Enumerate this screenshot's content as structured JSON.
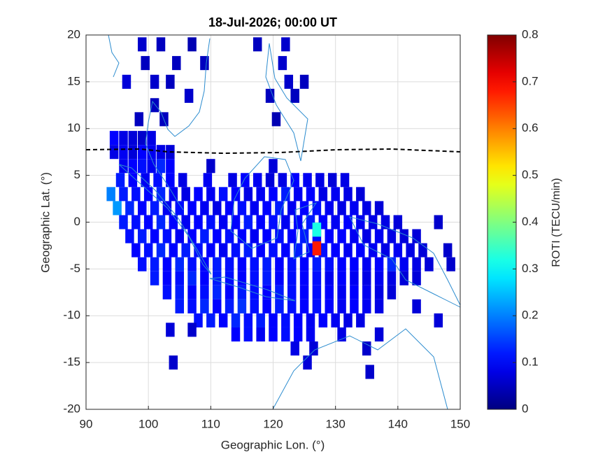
{
  "chart_data": {
    "type": "heatmap",
    "title": "18-Jul-2026; 00:00 UT",
    "xlabel": "Geographic Lon. (°)",
    "ylabel": "Geographic Lat. (°)",
    "colorbar_label": "ROTI (TECU/min)",
    "colormap": "jet",
    "xlim": [
      90,
      150
    ],
    "xticks": [
      90,
      100,
      110,
      120,
      130,
      140,
      150
    ],
    "ylim": [
      -20,
      20
    ],
    "yticks": [
      -20,
      -15,
      -10,
      -5,
      0,
      5,
      10,
      15,
      20
    ],
    "clim": [
      0,
      0.8
    ],
    "cticks": [
      0,
      0.1,
      0.2,
      0.3,
      0.4,
      0.5,
      0.6,
      0.7,
      0.8
    ],
    "grid": true,
    "rows": [
      {
        "lat": 19,
        "lon": [
          99,
          102,
          107,
          117.5,
          122
        ],
        "values": [
          0.06,
          0.05,
          0.04,
          0.05,
          0.06
        ]
      },
      {
        "lat": 17,
        "lon": [
          99.5,
          104.5,
          109,
          121.5
        ],
        "values": [
          0.05,
          0.05,
          0.05,
          0.06
        ]
      },
      {
        "lat": 15,
        "lon": [
          96.5,
          101,
          103.5,
          122.5,
          125
        ],
        "values": [
          0.07,
          0.06,
          0.05,
          0.06,
          0.05
        ]
      },
      {
        "lat": 13.5,
        "lon": [
          106.5,
          119.5,
          123.5
        ],
        "values": [
          0.06,
          0.05,
          0.05
        ]
      },
      {
        "lat": 12.5,
        "lon": [
          101
        ],
        "values": [
          0.05
        ]
      },
      {
        "lat": 11,
        "lon": [
          98.5,
          102.5,
          120.5
        ],
        "values": [
          0.05,
          0.05,
          0.04
        ]
      },
      {
        "lat": 9,
        "lon": [
          94.5,
          96,
          97.5,
          99,
          100.5
        ],
        "values": [
          0.1,
          0.08,
          0.07,
          0.06,
          0.08
        ]
      },
      {
        "lat": 7.5,
        "lon": [
          94.5,
          96,
          97.5,
          99,
          100.5,
          102,
          103.5
        ],
        "values": [
          0.08,
          0.09,
          0.07,
          0.1,
          0.09,
          0.08,
          0.07
        ]
      },
      {
        "lat": 6,
        "lon": [
          96,
          97.5,
          99,
          100.5,
          102,
          103.5,
          110,
          120
        ],
        "values": [
          0.09,
          0.1,
          0.11,
          0.09,
          0.13,
          0.1,
          0.06,
          0.07
        ]
      },
      {
        "lat": 4.5,
        "lon": [
          95.5,
          97.5,
          99.5,
          101.5,
          103.5,
          105.5,
          109.5,
          113.5,
          115.5,
          117.5,
          119.5,
          121.5,
          123.5,
          125.5,
          127.5,
          129.5,
          131.5
        ],
        "values": [
          0.12,
          0.1,
          0.09,
          0.11,
          0.1,
          0.08,
          0.09,
          0.08,
          0.1,
          0.09,
          0.07,
          0.08,
          0.1,
          0.09,
          0.08,
          0.07,
          0.08
        ]
      },
      {
        "lat": 3,
        "lon": [
          94,
          96,
          98,
          100,
          102,
          104,
          106,
          108,
          110,
          112,
          114,
          116,
          118,
          120,
          122,
          124,
          126,
          128,
          130,
          132,
          134
        ],
        "values": [
          0.2,
          0.12,
          0.11,
          0.1,
          0.13,
          0.09,
          0.08,
          0.1,
          0.09,
          0.11,
          0.1,
          0.08,
          0.09,
          0.1,
          0.12,
          0.09,
          0.1,
          0.08,
          0.09,
          0.08,
          0.07
        ]
      },
      {
        "lat": 1.5,
        "lon": [
          95,
          97,
          99,
          101,
          103,
          105,
          107,
          109,
          111,
          113,
          115,
          117,
          119,
          121,
          123,
          125,
          127,
          129,
          131,
          133,
          135,
          137
        ],
        "values": [
          0.22,
          0.13,
          0.1,
          0.12,
          0.09,
          0.11,
          0.1,
          0.09,
          0.08,
          0.1,
          0.11,
          0.09,
          0.1,
          0.12,
          0.09,
          0.1,
          0.11,
          0.09,
          0.08,
          0.09,
          0.08,
          0.07
        ]
      },
      {
        "lat": 0,
        "lon": [
          96,
          98,
          100,
          102,
          104,
          106,
          108,
          110,
          112,
          114,
          116,
          118,
          120,
          122,
          124,
          126,
          128,
          130,
          132,
          134,
          136,
          138,
          140,
          146.5
        ],
        "values": [
          0.12,
          0.11,
          0.1,
          0.13,
          0.1,
          0.09,
          0.1,
          0.11,
          0.09,
          0.1,
          0.12,
          0.1,
          0.11,
          0.09,
          0.1,
          0.12,
          0.1,
          0.09,
          0.1,
          0.09,
          0.08,
          0.08,
          0.07,
          0.06
        ]
      },
      {
        "lat": -1.5,
        "lon": [
          97,
          99,
          101,
          103,
          105,
          107,
          109,
          111,
          113,
          115,
          117,
          119,
          121,
          123,
          125,
          127,
          129,
          131,
          133,
          135,
          137,
          139,
          141,
          143
        ],
        "values": [
          0.11,
          0.12,
          0.1,
          0.11,
          0.09,
          0.1,
          0.12,
          0.1,
          0.11,
          0.1,
          0.09,
          0.1,
          0.11,
          0.1,
          0.12,
          0.11,
          0.1,
          0.1,
          0.09,
          0.08,
          0.09,
          0.08,
          0.07,
          0.07
        ]
      },
      {
        "lat": -3,
        "lon": [
          98,
          100,
          102,
          104,
          106,
          108,
          110,
          112,
          114,
          116,
          118,
          120,
          122,
          124,
          126,
          128,
          130,
          132,
          134,
          136,
          138,
          140,
          142,
          144,
          148
        ],
        "values": [
          0.1,
          0.11,
          0.13,
          0.1,
          0.12,
          0.11,
          0.1,
          0.09,
          0.11,
          0.12,
          0.1,
          0.11,
          0.1,
          0.12,
          0.1,
          0.11,
          0.1,
          0.09,
          0.1,
          0.09,
          0.08,
          0.09,
          0.08,
          0.07,
          0.06
        ]
      },
      {
        "lat": -4.5,
        "lon": [
          99,
          101,
          103,
          105,
          107,
          109,
          111,
          113,
          115,
          117,
          119,
          121,
          123,
          125,
          127,
          129,
          131,
          133,
          135,
          137,
          139,
          141,
          143,
          145,
          148.5
        ],
        "values": [
          0.11,
          0.12,
          0.1,
          0.13,
          0.11,
          0.1,
          0.12,
          0.11,
          0.1,
          0.11,
          0.12,
          0.1,
          0.11,
          0.1,
          0.12,
          0.11,
          0.1,
          0.1,
          0.09,
          0.1,
          0.13,
          0.09,
          0.08,
          0.07,
          0.06
        ]
      },
      {
        "lat": -6,
        "lon": [
          101,
          103,
          105,
          107,
          109,
          111,
          113,
          115,
          117,
          119,
          121,
          123,
          125,
          127,
          129,
          131,
          133,
          135,
          137,
          139,
          141,
          143
        ],
        "values": [
          0.12,
          0.1,
          0.11,
          0.13,
          0.1,
          0.12,
          0.11,
          0.1,
          0.11,
          0.12,
          0.1,
          0.11,
          0.1,
          0.11,
          0.09,
          0.1,
          0.09,
          0.08,
          0.09,
          0.08,
          0.07,
          0.07
        ]
      },
      {
        "lat": -7.5,
        "lon": [
          103,
          105,
          107,
          109,
          111,
          113,
          115,
          117,
          119,
          121,
          123,
          125,
          127,
          129,
          131,
          133,
          135,
          137,
          139
        ],
        "values": [
          0.11,
          0.12,
          0.1,
          0.11,
          0.13,
          0.1,
          0.12,
          0.11,
          0.1,
          0.12,
          0.11,
          0.1,
          0.11,
          0.1,
          0.09,
          0.1,
          0.09,
          0.08,
          0.07
        ]
      },
      {
        "lat": -9,
        "lon": [
          105,
          107,
          109,
          111,
          113,
          115,
          117,
          119,
          121,
          123,
          125,
          127,
          129,
          131,
          133,
          135,
          137,
          143
        ],
        "values": [
          0.12,
          0.11,
          0.13,
          0.1,
          0.12,
          0.14,
          0.11,
          0.1,
          0.12,
          0.11,
          0.1,
          0.11,
          0.1,
          0.09,
          0.1,
          0.09,
          0.08,
          0.07
        ]
      },
      {
        "lat": -10.5,
        "lon": [
          108,
          110,
          112,
          114,
          116,
          118,
          120,
          122,
          124,
          126,
          128,
          130,
          132,
          134,
          146.5
        ],
        "values": [
          0.11,
          0.12,
          0.1,
          0.13,
          0.11,
          0.12,
          0.1,
          0.11,
          0.1,
          0.09,
          0.1,
          0.09,
          0.08,
          0.08,
          0.07
        ]
      },
      {
        "lat": -11.5,
        "lon": [
          103.5,
          107
        ],
        "values": [
          0.07,
          0.06
        ]
      },
      {
        "lat": -12,
        "lon": [
          114,
          116,
          118,
          120,
          122,
          124,
          126,
          131,
          137
        ],
        "values": [
          0.1,
          0.11,
          0.09,
          0.1,
          0.11,
          0.1,
          0.09,
          0.08,
          0.07
        ]
      },
      {
        "lat": -13.5,
        "lon": [
          123.5,
          126.5,
          135
        ],
        "values": [
          0.08,
          0.07,
          0.06
        ]
      },
      {
        "lat": -15,
        "lon": [
          104,
          125.5
        ],
        "values": [
          0.06,
          0.07
        ]
      },
      {
        "lat": -16,
        "lon": [
          135.5
        ],
        "values": [
          0.06
        ]
      },
      {
        "lat": -0.8,
        "lon": [
          127
        ],
        "values": [
          0.32
        ]
      },
      {
        "lat": -2.8,
        "lon": [
          127
        ],
        "values": [
          0.68
        ]
      }
    ]
  }
}
